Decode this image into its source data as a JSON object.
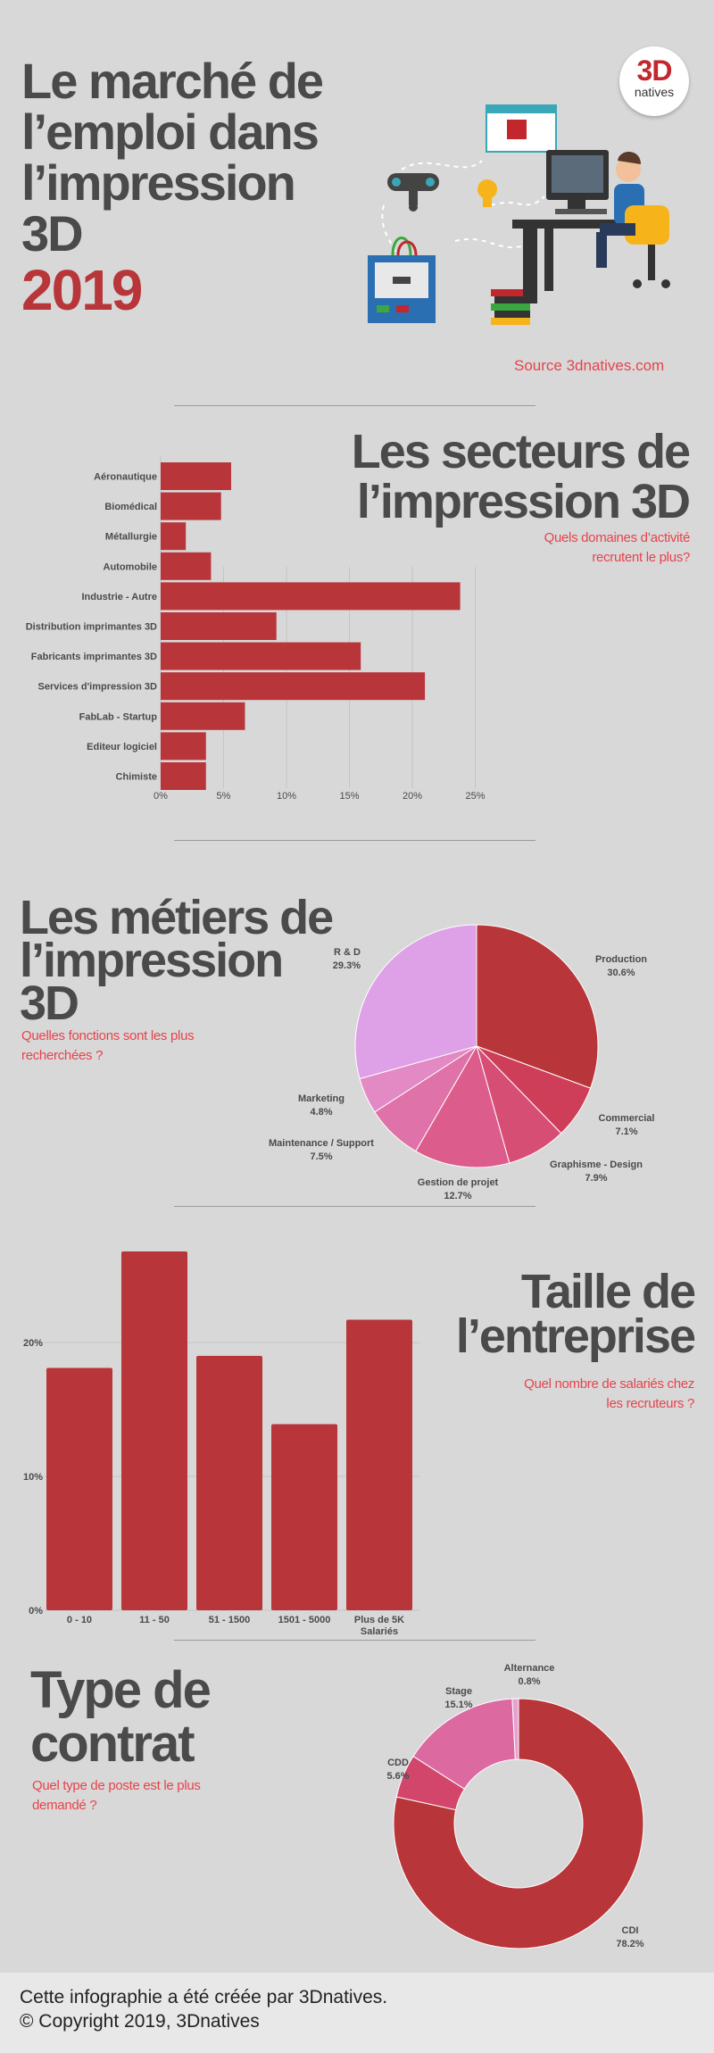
{
  "header": {
    "title_lines": [
      "Le marché de",
      "l’emploi dans",
      "l’impression",
      "3D"
    ],
    "year": "2019",
    "source": "Source 3dnatives.com",
    "logo_top": "3D",
    "logo_bottom": "natives"
  },
  "sectors": {
    "title_lines": [
      "Les secteurs de",
      "l’impression 3D"
    ],
    "subtitle_lines": [
      "Quels domaines d’activité",
      "recrutent le plus?"
    ]
  },
  "jobs": {
    "title_lines": [
      "Les métiers de",
      "l’impression",
      "3D"
    ],
    "subtitle_lines": [
      "Quelles fonctions sont les plus",
      "recherchées ?"
    ]
  },
  "size": {
    "title_lines": [
      "Taille de",
      "l’entreprise"
    ],
    "subtitle_lines": [
      "Quel nombre de salariés chez",
      "les recruteurs ?"
    ]
  },
  "contract": {
    "title_lines": [
      "Type de",
      "contrat"
    ],
    "subtitle_lines": [
      "Quel type de poste est le plus",
      "demandé ?"
    ]
  },
  "footer": {
    "line1": "Cette infographie a été créée par 3Dnatives.",
    "line2": "© Copyright 2019, 3Dnatives"
  },
  "colors": {
    "bar_red": "#b8353a",
    "title_grey": "#4a4a4a",
    "subtitle_red": "#e8434b",
    "logo_red": "#c2272d"
  },
  "chart_data": [
    {
      "type": "bar",
      "orientation": "horizontal",
      "categories": [
        "Aéronautique",
        "Biomédical",
        "Métallurgie",
        "Automobile",
        "Industrie - Autre",
        "Distribution imprimantes 3D",
        "Fabricants imprimantes 3D",
        "Services d'impression 3D",
        "FabLab - Startup",
        "Editeur logiciel",
        "Chimiste"
      ],
      "values": [
        5.6,
        4.8,
        2.0,
        4.0,
        23.8,
        9.2,
        15.9,
        21.0,
        6.7,
        3.6,
        3.6
      ],
      "xticks": [
        "0%",
        "5%",
        "10%",
        "15%",
        "20%",
        "25%"
      ],
      "xlim": [
        0,
        25
      ],
      "grid": true
    },
    {
      "type": "pie",
      "slices": [
        {
          "label": "Production",
          "value": 30.6,
          "value_label": "30.6%",
          "color": "#b8353a"
        },
        {
          "label": "Commercial",
          "value": 7.1,
          "value_label": "7.1%",
          "color": "#cf3e58"
        },
        {
          "label": "Graphisme - Design",
          "value": 7.9,
          "value_label": "7.9%",
          "color": "#d74e75"
        },
        {
          "label": "Gestion de projet",
          "value": 12.7,
          "value_label": "12.7%",
          "color": "#dc5d8c"
        },
        {
          "label": "Maintenance / Support",
          "value": 7.5,
          "value_label": "7.5%",
          "color": "#df72a8"
        },
        {
          "label": "Marketing",
          "value": 4.8,
          "value_label": "4.8%",
          "color": "#e389c4"
        },
        {
          "label": "R & D",
          "value": 29.3,
          "value_label": "29.3%",
          "color": "#dea0e6"
        }
      ]
    },
    {
      "type": "bar",
      "orientation": "vertical",
      "categories": [
        [
          "0 - 10"
        ],
        [
          "11 - 50"
        ],
        [
          "51 - 1500"
        ],
        [
          "1501 - 5000"
        ],
        [
          "Plus de 5K",
          "Salariés"
        ]
      ],
      "values": [
        18.1,
        26.8,
        19.0,
        13.9,
        21.7
      ],
      "yticks": [
        "0%",
        "10%",
        "20%"
      ],
      "ylim": [
        0,
        30
      ],
      "grid": true
    },
    {
      "type": "pie",
      "style": "donut",
      "slices": [
        {
          "label": "CDI",
          "value": 78.2,
          "value_label": "78.2%",
          "color": "#b8353a"
        },
        {
          "label": "CDD",
          "value": 5.6,
          "value_label": "5.6%",
          "color": "#d1466a"
        },
        {
          "label": "Stage",
          "value": 15.1,
          "value_label": "15.1%",
          "color": "#dc6aa0"
        },
        {
          "label": "Alternance",
          "value": 0.8,
          "value_label": "0.8%",
          "color": "#e6a0d4"
        }
      ]
    }
  ]
}
